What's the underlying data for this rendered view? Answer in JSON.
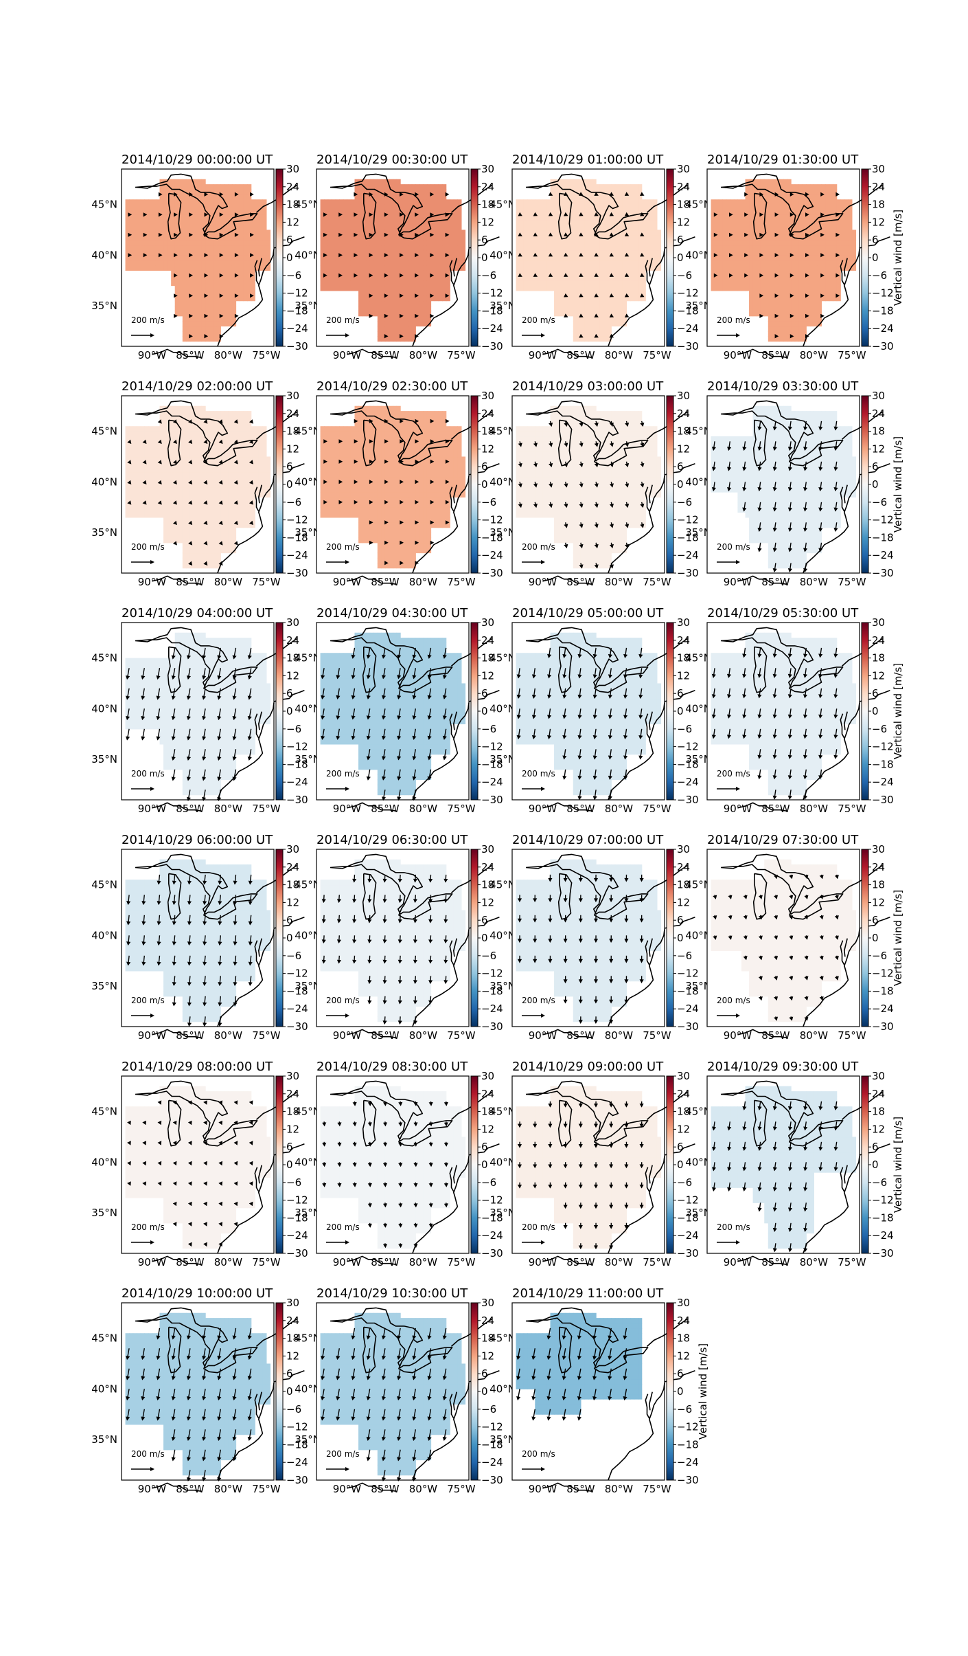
{
  "figure": {
    "colorbar_label": "Vertical wind [m/s]",
    "colorbar_ticks": [
      "30",
      "24",
      "18",
      "12",
      "6",
      "0",
      "−6",
      "−12",
      "−18",
      "−24",
      "−30"
    ],
    "lat_labels": [
      "45°N",
      "40°N",
      "35°N"
    ],
    "lon_labels": [
      "90°W",
      "85°W",
      "80°W",
      "75°W"
    ],
    "scale_label": "200 m/s",
    "colorbar_range": [
      -30,
      30
    ],
    "colormap": "RdBu_r"
  },
  "panels": [
    {
      "title": "2014/10/29 00:00:00 UT",
      "value": 12,
      "shape": 0,
      "arrow_dir": 0,
      "arrow_len": 0.25
    },
    {
      "title": "2014/10/29 00:30:00 UT",
      "value": 14,
      "shape": 1,
      "arrow_dir": 0,
      "arrow_len": 0.35
    },
    {
      "title": "2014/10/29 01:00:00 UT",
      "value": 6,
      "shape": 1,
      "arrow_dir": 10,
      "arrow_len": 0.3
    },
    {
      "title": "2014/10/29 01:30:00 UT",
      "value": 12,
      "shape": 1,
      "arrow_dir": 0,
      "arrow_len": 0.3
    },
    {
      "title": "2014/10/29 02:00:00 UT",
      "value": 4,
      "shape": 1,
      "arrow_dir": 20,
      "arrow_len": 0.35
    },
    {
      "title": "2014/10/29 02:30:00 UT",
      "value": 11,
      "shape": 1,
      "arrow_dir": 0,
      "arrow_len": 0.4
    },
    {
      "title": "2014/10/29 03:00:00 UT",
      "value": 2,
      "shape": 1,
      "arrow_dir": 40,
      "arrow_len": 0.55
    },
    {
      "title": "2014/10/29 03:30:00 UT",
      "value": -3,
      "shape": 2,
      "arrow_dir": 75,
      "arrow_len": 0.7
    },
    {
      "title": "2014/10/29 04:00:00 UT",
      "value": -3,
      "shape": 3,
      "arrow_dir": 80,
      "arrow_len": 0.9
    },
    {
      "title": "2014/10/29 04:30:00 UT",
      "value": -10,
      "shape": 1,
      "arrow_dir": 80,
      "arrow_len": 0.85
    },
    {
      "title": "2014/10/29 05:00:00 UT",
      "value": -5,
      "shape": 1,
      "arrow_dir": 75,
      "arrow_len": 0.8
    },
    {
      "title": "2014/10/29 05:30:00 UT",
      "value": -3,
      "shape": 1,
      "arrow_dir": 75,
      "arrow_len": 0.75
    },
    {
      "title": "2014/10/29 06:00:00 UT",
      "value": -5,
      "shape": 1,
      "arrow_dir": 70,
      "arrow_len": 0.8
    },
    {
      "title": "2014/10/29 06:30:00 UT",
      "value": -2,
      "shape": 1,
      "arrow_dir": 65,
      "arrow_len": 0.6
    },
    {
      "title": "2014/10/29 07:00:00 UT",
      "value": -4,
      "shape": 1,
      "arrow_dir": 60,
      "arrow_len": 0.55
    },
    {
      "title": "2014/10/29 07:30:00 UT",
      "value": 1,
      "shape": 4,
      "arrow_dir": 40,
      "arrow_len": 0.35
    },
    {
      "title": "2014/10/29 08:00:00 UT",
      "value": 1,
      "shape": 1,
      "arrow_dir": 30,
      "arrow_len": 0.3
    },
    {
      "title": "2014/10/29 08:30:00 UT",
      "value": -1,
      "shape": 1,
      "arrow_dir": 50,
      "arrow_len": 0.3
    },
    {
      "title": "2014/10/29 09:00:00 UT",
      "value": 2,
      "shape": 1,
      "arrow_dir": 60,
      "arrow_len": 0.4
    },
    {
      "title": "2014/10/29 09:30:00 UT",
      "value": -5,
      "shape": 5,
      "arrow_dir": 75,
      "arrow_len": 0.65
    },
    {
      "title": "2014/10/29 10:00:00 UT",
      "value": -10,
      "shape": 1,
      "arrow_dir": 80,
      "arrow_len": 0.9
    },
    {
      "title": "2014/10/29 10:30:00 UT",
      "value": -10,
      "shape": 1,
      "arrow_dir": 80,
      "arrow_len": 0.9
    },
    {
      "title": "2014/10/29 11:00:00 UT",
      "value": -13,
      "shape": 6,
      "arrow_dir": 80,
      "arrow_len": 0.9
    }
  ]
}
